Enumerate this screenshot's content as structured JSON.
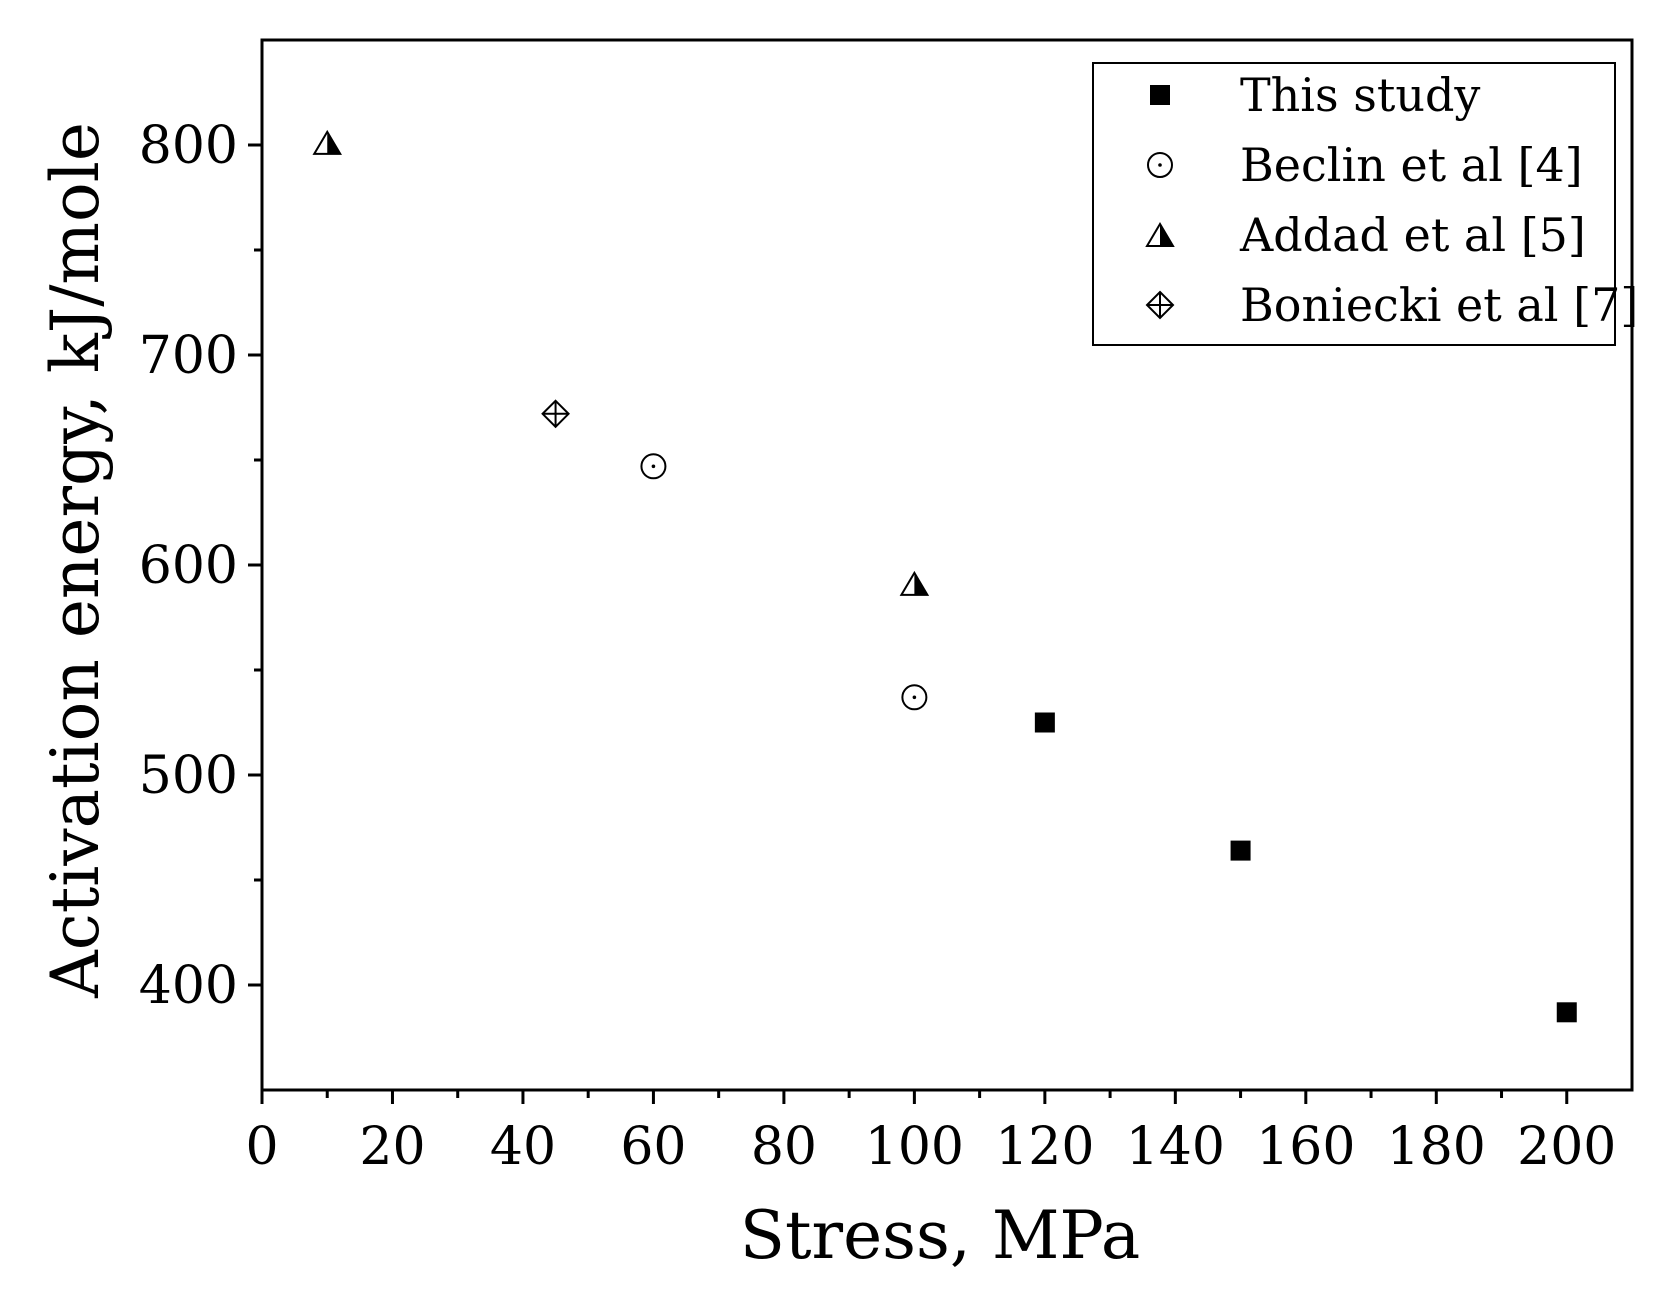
{
  "chart_data": {
    "type": "scatter",
    "title": "",
    "xlabel": "Stress, MPa",
    "ylabel": "Activation energy, kJ/mole",
    "xlim": [
      0,
      210
    ],
    "ylim": [
      350,
      850
    ],
    "xticks": [
      0,
      20,
      40,
      60,
      80,
      100,
      120,
      140,
      160,
      180,
      200
    ],
    "xtick_labels": [
      "0",
      "20",
      "40",
      "60",
      "80",
      "100",
      "120",
      "140",
      "160",
      "180",
      "200"
    ],
    "yticks": [
      400,
      500,
      600,
      700,
      800
    ],
    "ytick_labels": [
      "400",
      "500",
      "600",
      "700",
      "800"
    ],
    "x_minor_step": 10,
    "y_minor_step": 50,
    "grid": false,
    "legend_position": "top-right",
    "series": [
      {
        "name": "This study",
        "marker": "filled-square",
        "color": "#000000",
        "x": [
          120,
          150,
          200
        ],
        "y": [
          525,
          464,
          387
        ]
      },
      {
        "name": "Beclin et al [4]",
        "marker": "dotted-circle",
        "color": "#000000",
        "x": [
          60,
          100
        ],
        "y": [
          647,
          537
        ]
      },
      {
        "name": "Addad et al [5]",
        "marker": "half-filled-triangle",
        "color": "#000000",
        "x": [
          10,
          100
        ],
        "y": [
          801,
          591
        ]
      },
      {
        "name": "Boniecki et al [7]",
        "marker": "crossed-diamond",
        "color": "#000000",
        "x": [
          45
        ],
        "y": [
          672
        ]
      }
    ]
  }
}
